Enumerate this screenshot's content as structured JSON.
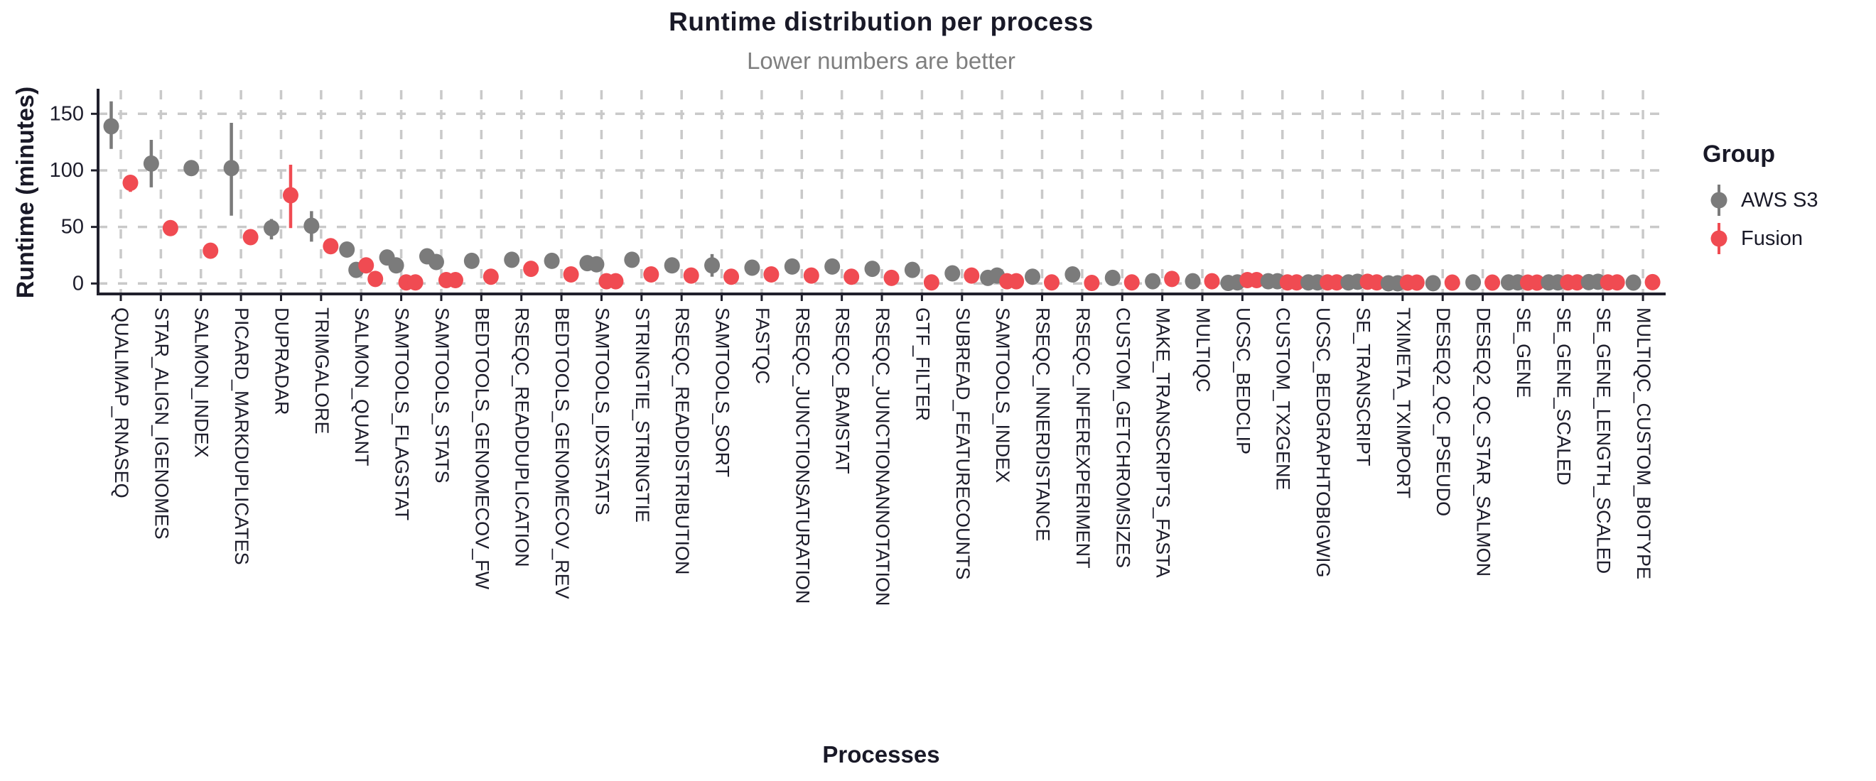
{
  "chart_data": {
    "type": "scatter",
    "title": "Runtime distribution per process",
    "subtitle": "Lower numbers are better",
    "xlabel": "Processes",
    "ylabel": "Runtime (minutes)",
    "ylim": [
      -9,
      171
    ],
    "yticks": [
      0,
      50,
      100,
      150
    ],
    "grid": "dashed-major-x-and-y",
    "legend_position": "right",
    "legend_title": "Group",
    "series": [
      {
        "name": "AWS S3",
        "color": "#7b7b7b"
      },
      {
        "name": "Fusion",
        "color": "#f04b52"
      }
    ],
    "unit": "minutes",
    "points": [
      {
        "process": "QUALIMAP_RNASEQ",
        "aws": {
          "values": [
            139
          ],
          "range": [
            119,
            161
          ]
        },
        "fusion": {
          "values": [
            89
          ],
          "range": [
            81,
            95
          ]
        }
      },
      {
        "process": "STAR_ALIGN_IGENOMES",
        "aws": {
          "values": [
            106
          ],
          "range": [
            85,
            127
          ]
        },
        "fusion": {
          "values": [
            49
          ]
        }
      },
      {
        "process": "SALMON_INDEX",
        "aws": {
          "values": [
            102
          ]
        },
        "fusion": {
          "values": [
            29
          ]
        }
      },
      {
        "process": "PICARD_MARKDUPLICATES",
        "aws": {
          "values": [
            102
          ],
          "range": [
            60,
            142
          ]
        },
        "fusion": {
          "values": [
            41
          ]
        }
      },
      {
        "process": "DUPRADAR",
        "aws": {
          "values": [
            49
          ],
          "range": [
            39,
            57
          ]
        },
        "fusion": {
          "values": [
            78
          ],
          "range": [
            49,
            105
          ]
        }
      },
      {
        "process": "TRIMGALORE",
        "aws": {
          "values": [
            51
          ],
          "range": [
            37,
            64
          ]
        },
        "fusion": {
          "values": [
            33
          ]
        }
      },
      {
        "process": "SALMON_QUANT",
        "aws": {
          "values": [
            30,
            12
          ]
        },
        "fusion": {
          "values": [
            16,
            4
          ]
        }
      },
      {
        "process": "SAMTOOLS_FLAGSTAT",
        "aws": {
          "values": [
            23,
            16
          ]
        },
        "fusion": {
          "values": [
            1,
            1
          ]
        }
      },
      {
        "process": "SAMTOOLS_STATS",
        "aws": {
          "values": [
            24,
            19
          ]
        },
        "fusion": {
          "values": [
            3,
            3
          ]
        }
      },
      {
        "process": "BEDTOOLS_GENOMECOV_FW",
        "aws": {
          "values": [
            20
          ]
        },
        "fusion": {
          "values": [
            6
          ]
        }
      },
      {
        "process": "RSEQC_READDUPLICATION",
        "aws": {
          "values": [
            21
          ]
        },
        "fusion": {
          "values": [
            13
          ]
        }
      },
      {
        "process": "BEDTOOLS_GENOMECOV_REV",
        "aws": {
          "values": [
            20
          ]
        },
        "fusion": {
          "values": [
            8
          ]
        }
      },
      {
        "process": "SAMTOOLS_IDXSTATS",
        "aws": {
          "values": [
            18,
            17
          ]
        },
        "fusion": {
          "values": [
            2,
            2
          ]
        }
      },
      {
        "process": "STRINGTIE_STRINGTIE",
        "aws": {
          "values": [
            21
          ]
        },
        "fusion": {
          "values": [
            8
          ]
        }
      },
      {
        "process": "RSEQC_READDISTRIBUTION",
        "aws": {
          "values": [
            16
          ]
        },
        "fusion": {
          "values": [
            7
          ]
        }
      },
      {
        "process": "SAMTOOLS_SORT",
        "aws": {
          "values": [
            16
          ],
          "range": [
            6,
            26
          ]
        },
        "fusion": {
          "values": [
            6
          ]
        }
      },
      {
        "process": "FASTQC",
        "aws": {
          "values": [
            14
          ]
        },
        "fusion": {
          "values": [
            8
          ]
        }
      },
      {
        "process": "RSEQC_JUNCTIONSATURATION",
        "aws": {
          "values": [
            15
          ]
        },
        "fusion": {
          "values": [
            7
          ]
        }
      },
      {
        "process": "RSEQC_BAMSTAT",
        "aws": {
          "values": [
            15
          ]
        },
        "fusion": {
          "values": [
            6
          ]
        }
      },
      {
        "process": "RSEQC_JUNCTIONANNOTATION",
        "aws": {
          "values": [
            13
          ]
        },
        "fusion": {
          "values": [
            5
          ]
        }
      },
      {
        "process": "GTF_FILTER",
        "aws": {
          "values": [
            12
          ]
        },
        "fusion": {
          "values": [
            1
          ]
        }
      },
      {
        "process": "SUBREAD_FEATURECOUNTS",
        "aws": {
          "values": [
            9
          ]
        },
        "fusion": {
          "values": [
            7
          ]
        }
      },
      {
        "process": "SAMTOOLS_INDEX",
        "aws": {
          "values": [
            5,
            7
          ]
        },
        "fusion": {
          "values": [
            2,
            2
          ]
        }
      },
      {
        "process": "RSEQC_INNERDISTANCE",
        "aws": {
          "values": [
            6
          ]
        },
        "fusion": {
          "values": [
            1
          ]
        }
      },
      {
        "process": "RSEQC_INFEREXPERIMENT",
        "aws": {
          "values": [
            8
          ]
        },
        "fusion": {
          "values": [
            0.5
          ]
        }
      },
      {
        "process": "CUSTOM_GETCHROMSIZES",
        "aws": {
          "values": [
            5
          ]
        },
        "fusion": {
          "values": [
            1
          ]
        }
      },
      {
        "process": "MAKE_TRANSCRIPTS_FASTA",
        "aws": {
          "values": [
            2
          ]
        },
        "fusion": {
          "values": [
            4
          ]
        }
      },
      {
        "process": "MULTIQC",
        "aws": {
          "values": [
            2
          ]
        },
        "fusion": {
          "values": [
            2
          ]
        }
      },
      {
        "process": "UCSC_BEDCLIP",
        "aws": {
          "values": [
            0.5,
            1
          ]
        },
        "fusion": {
          "values": [
            3,
            3
          ]
        }
      },
      {
        "process": "CUSTOM_TX2GENE",
        "aws": {
          "values": [
            2,
            2
          ]
        },
        "fusion": {
          "values": [
            1,
            1
          ]
        }
      },
      {
        "process": "UCSC_BEDGRAPHTOBIGWIG",
        "aws": {
          "values": [
            1,
            1
          ]
        },
        "fusion": {
          "values": [
            1,
            1
          ]
        }
      },
      {
        "process": "SE_TRANSCRIPT",
        "aws": {
          "values": [
            1,
            1.5
          ]
        },
        "fusion": {
          "values": [
            1.5,
            1
          ]
        }
      },
      {
        "process": "TXIMETA_TXIMPORT",
        "aws": {
          "values": [
            0.2,
            0.2
          ]
        },
        "fusion": {
          "values": [
            0.8,
            0.8
          ]
        }
      },
      {
        "process": "DESEQ2_QC_PSEUDO",
        "aws": {
          "values": [
            0.3
          ]
        },
        "fusion": {
          "values": [
            0.8
          ]
        }
      },
      {
        "process": "DESEQ2_QC_STAR_SALMON",
        "aws": {
          "values": [
            1
          ]
        },
        "fusion": {
          "values": [
            0.8
          ]
        }
      },
      {
        "process": "SE_GENE",
        "aws": {
          "values": [
            1,
            1
          ]
        },
        "fusion": {
          "values": [
            0.8,
            0.8
          ]
        }
      },
      {
        "process": "SE_GENE_SCALED",
        "aws": {
          "values": [
            1,
            1
          ]
        },
        "fusion": {
          "values": [
            1,
            1
          ]
        }
      },
      {
        "process": "SE_GENE_LENGTH_SCALED",
        "aws": {
          "values": [
            1.2,
            1.5
          ]
        },
        "fusion": {
          "values": [
            1,
            1
          ]
        }
      },
      {
        "process": "MULTIQC_CUSTOM_BIOTYPE",
        "aws": {
          "values": [
            0.8
          ]
        },
        "fusion": {
          "values": [
            1.2
          ]
        }
      }
    ]
  },
  "colors": {
    "background": "#ffffff",
    "title_text": "#191927",
    "subtitle_text": "#7f7f7f",
    "axis_line": "#20202c",
    "tick_label": "#1d1d2b",
    "gridline": "#c9c9c9",
    "aws_point": "#7b7b7b",
    "fusion_point": "#f04b52"
  }
}
